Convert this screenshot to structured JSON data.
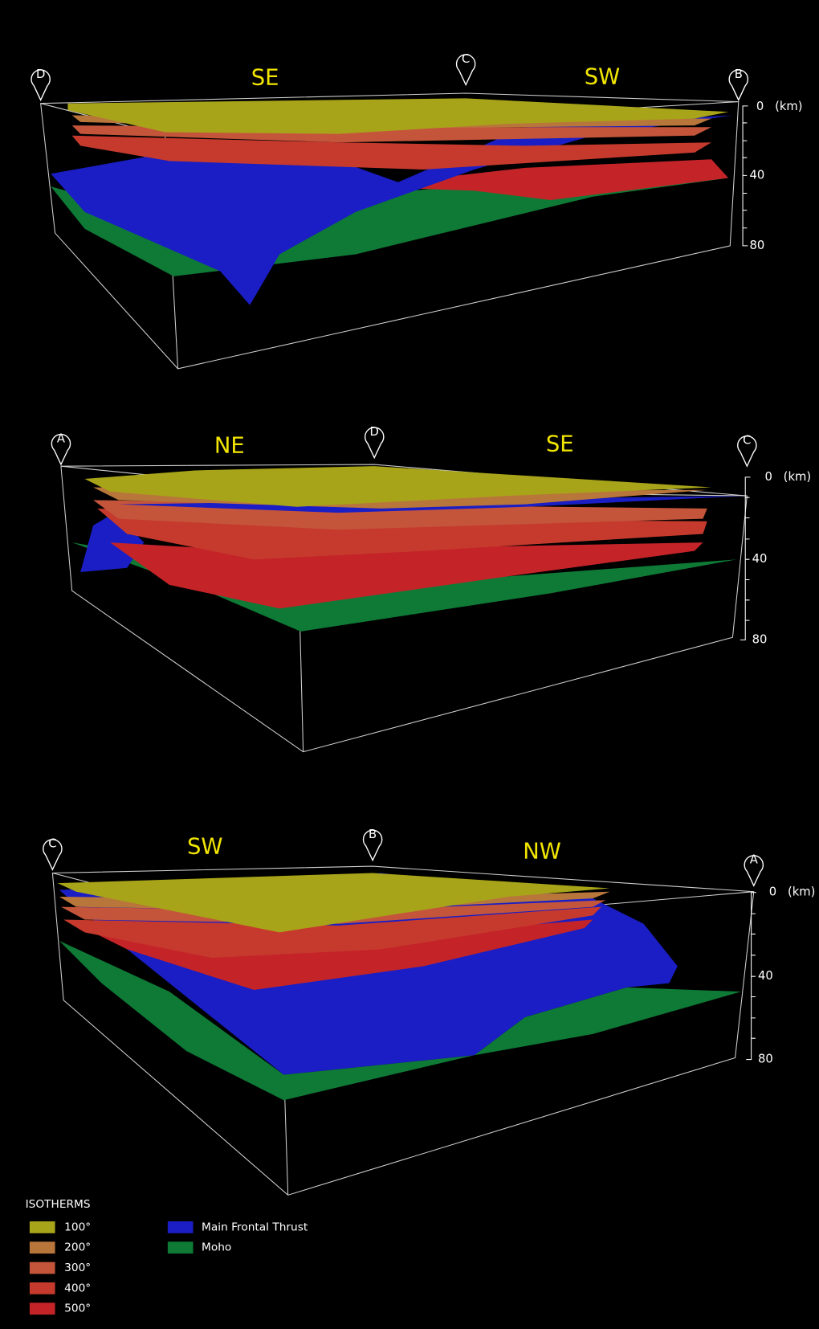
{
  "panels": [
    {
      "pins": [
        "D",
        "C",
        "B"
      ],
      "directions": [
        "SE",
        "SW"
      ],
      "depth_axis": {
        "ticks": [
          "0",
          "40",
          "80"
        ],
        "unit": "(km)"
      }
    },
    {
      "pins": [
        "A",
        "D",
        "C"
      ],
      "directions": [
        "NE",
        "SE"
      ],
      "depth_axis": {
        "ticks": [
          "0",
          "40",
          "80"
        ],
        "unit": "(km)"
      }
    },
    {
      "pins": [
        "C",
        "B",
        "A"
      ],
      "directions": [
        "SW",
        "NW"
      ],
      "depth_axis": {
        "ticks": [
          "0",
          "40",
          "80"
        ],
        "unit": "(km)"
      }
    }
  ],
  "legend": {
    "title": "ISOTHERMS",
    "isotherms": [
      "100°",
      "200°",
      "300°",
      "400°",
      "500°"
    ],
    "surfaces": [
      "Main Frontal Thrust",
      "Moho"
    ]
  }
}
